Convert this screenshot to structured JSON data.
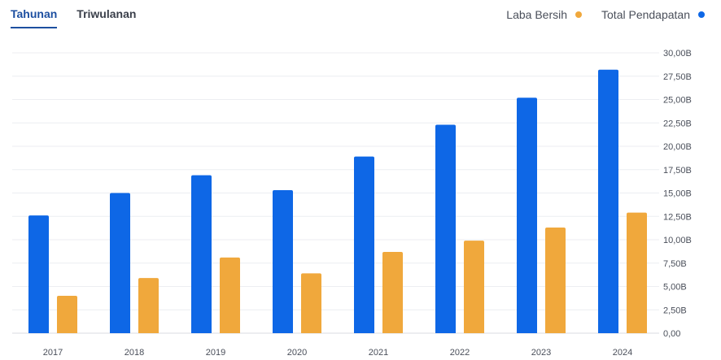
{
  "tabs": [
    {
      "label": "Tahunan",
      "active": true
    },
    {
      "label": "Triwulanan",
      "active": false
    }
  ],
  "legend": [
    {
      "label": "Laba Bersih",
      "color": "#F0A83C"
    },
    {
      "label": "Total Pendapatan",
      "color": "#0E67E6"
    }
  ],
  "chart_data": {
    "type": "bar",
    "categories": [
      "2017",
      "2018",
      "2019",
      "2020",
      "2021",
      "2022",
      "2023",
      "2024"
    ],
    "series": [
      {
        "name": "Total Pendapatan",
        "color": "#0E67E6",
        "values": [
          12.6,
          15.0,
          16.9,
          15.3,
          18.9,
          22.3,
          25.2,
          28.2
        ]
      },
      {
        "name": "Laba Bersih",
        "color": "#F0A83C",
        "values": [
          4.0,
          5.9,
          8.1,
          6.4,
          8.7,
          9.9,
          11.3,
          12.9
        ]
      }
    ],
    "ylim": [
      0,
      30
    ],
    "yticks": [
      "0,00",
      "2,50B",
      "5,00B",
      "7,50B",
      "10,00B",
      "12,50B",
      "15,00B",
      "17,50B",
      "20,00B",
      "22,50B",
      "25,00B",
      "27,50B",
      "30,00B"
    ],
    "grid": true,
    "legend_position": "top-right"
  }
}
